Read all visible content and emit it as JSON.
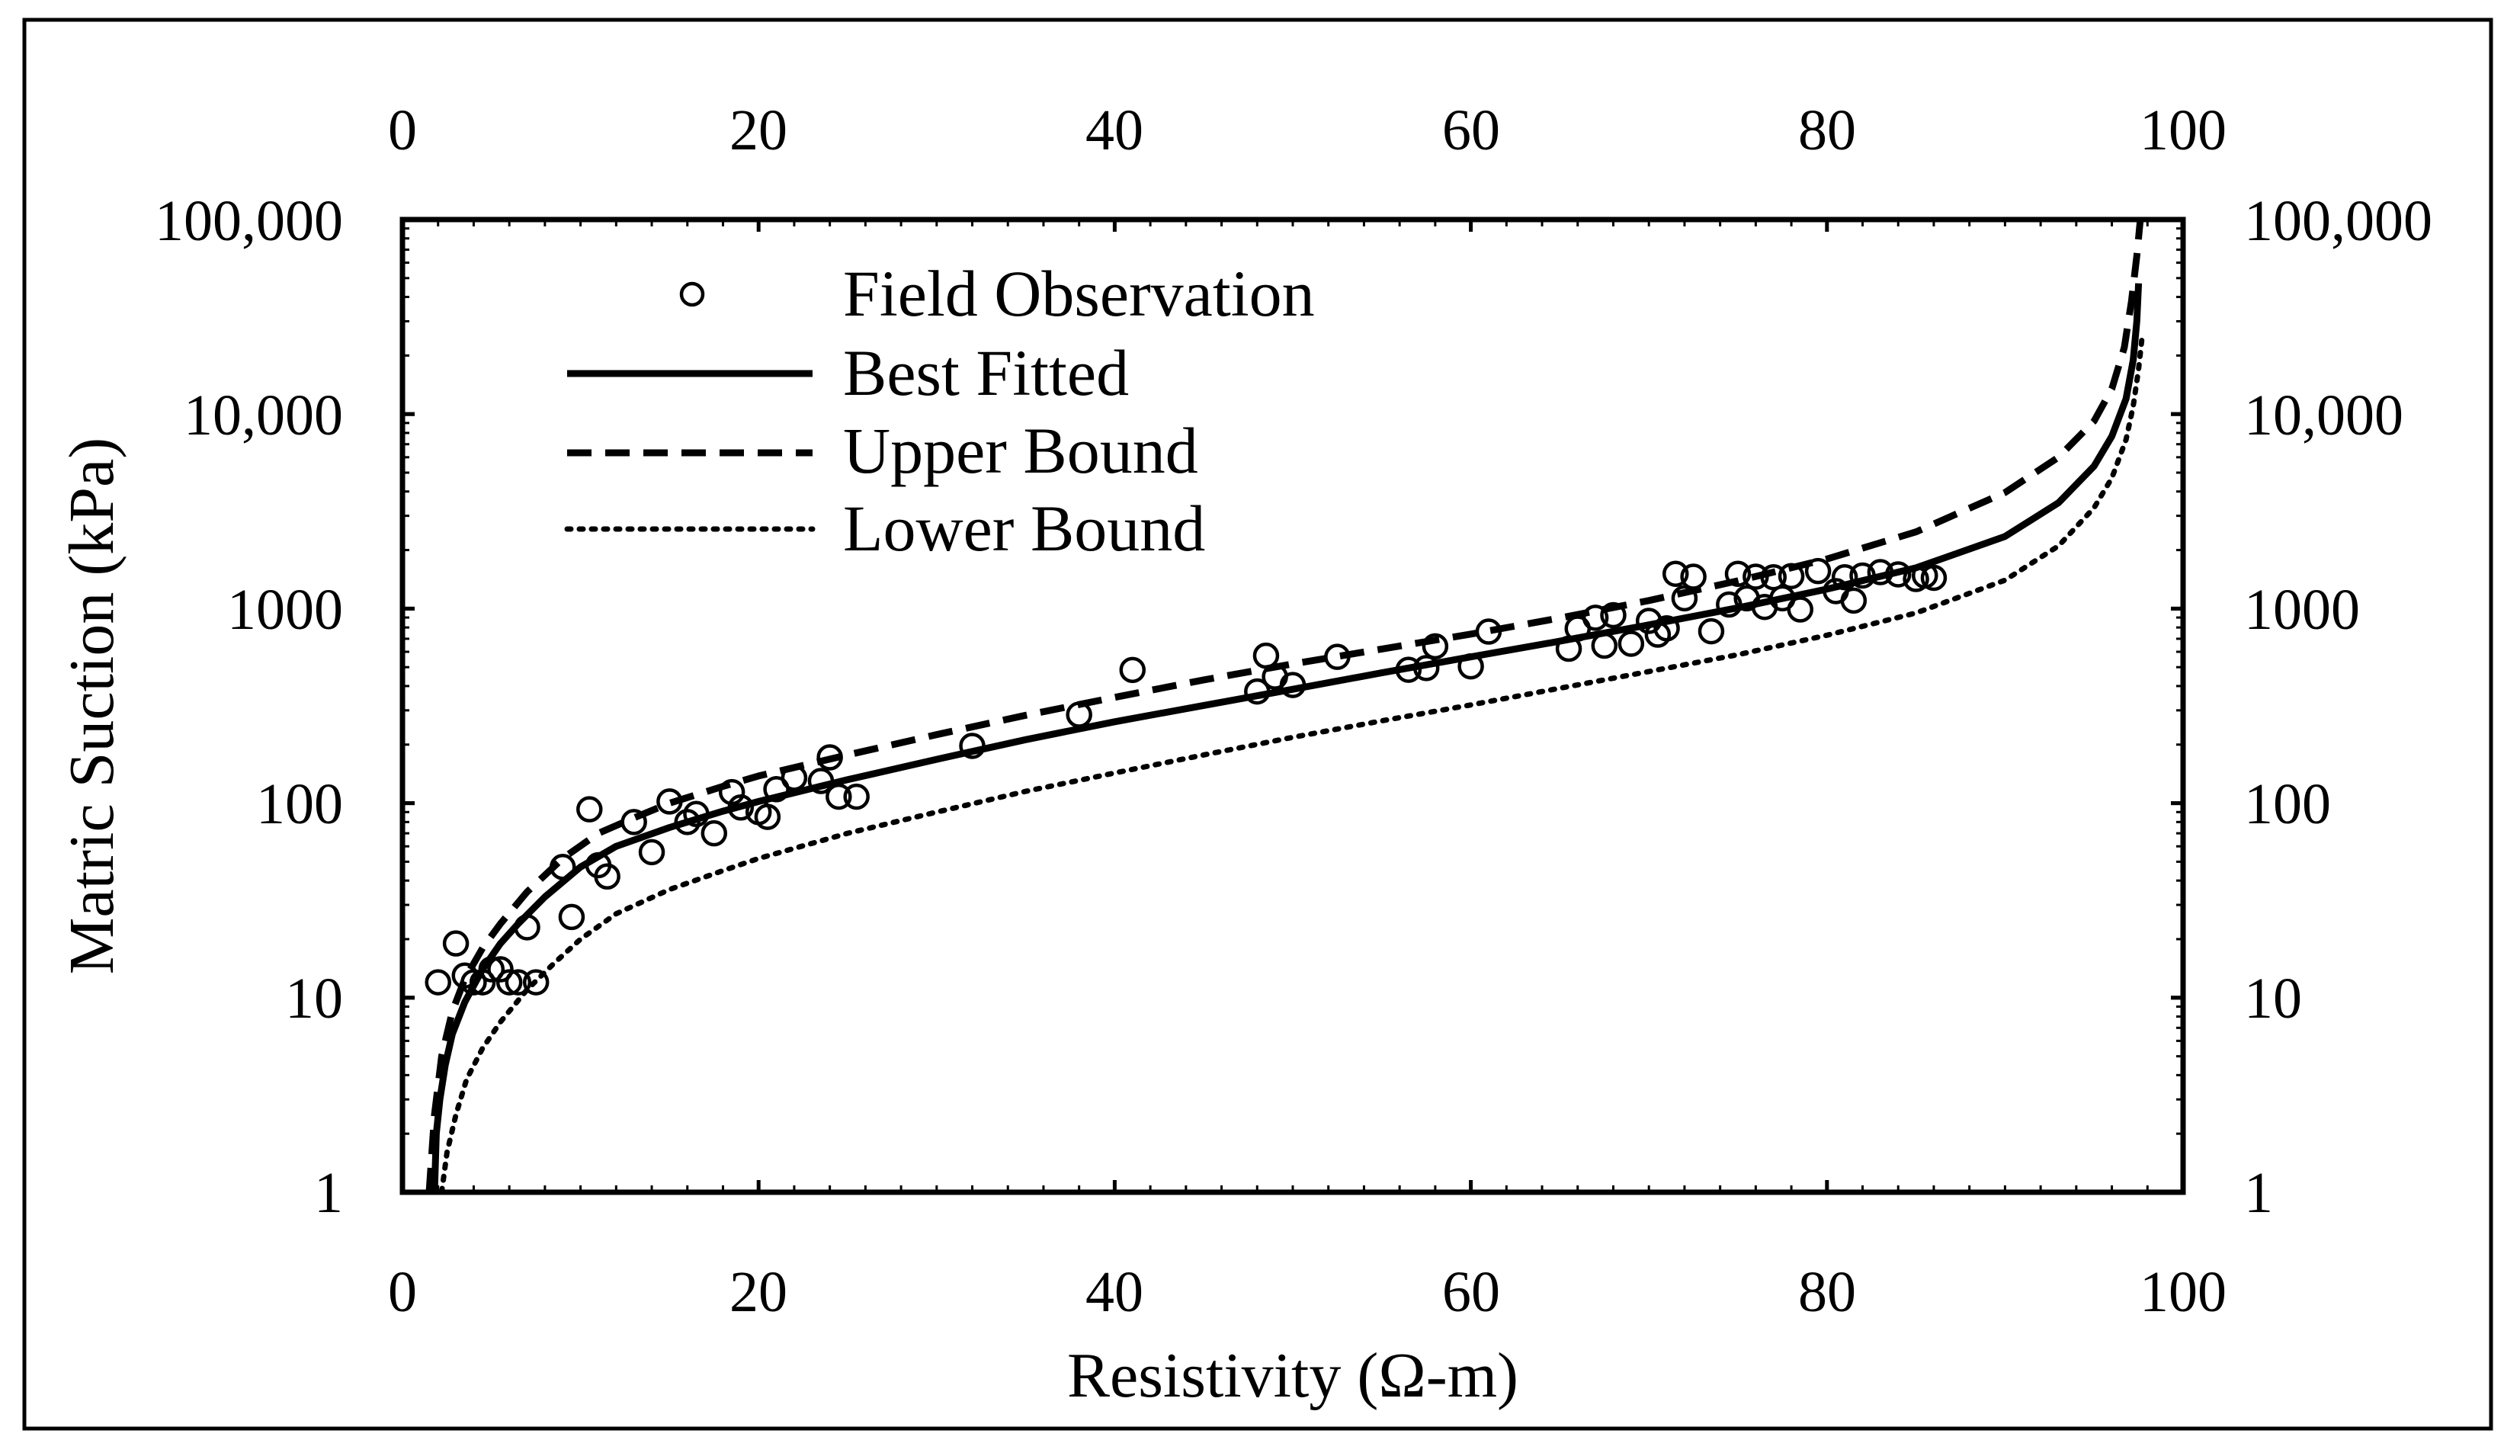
{
  "chart_data": {
    "type": "scatter",
    "title": "",
    "xlabel": "Resistivity (Ω-m)",
    "ylabel": "Matric Suction (kPa)",
    "xlim": [
      0,
      100
    ],
    "ylim": [
      1,
      100000
    ],
    "yscale": "log",
    "x_ticks": [
      0,
      20,
      40,
      60,
      80,
      100
    ],
    "x_tick_labels": [
      "0",
      "20",
      "40",
      "60",
      "80",
      "100"
    ],
    "y_ticks": [
      1,
      10,
      100,
      1000,
      10000,
      100000
    ],
    "y_tick_labels": [
      "1",
      "10",
      "100",
      "1000",
      "10,000",
      "100,000"
    ],
    "grid": false,
    "legend_position": "top-left",
    "series": [
      {
        "name": "Field Observation",
        "style": "open-circle",
        "points": [
          [
            2,
            12
          ],
          [
            3,
            19
          ],
          [
            3.5,
            13
          ],
          [
            4,
            12
          ],
          [
            4.5,
            12
          ],
          [
            5,
            14
          ],
          [
            5.5,
            14
          ],
          [
            6,
            12
          ],
          [
            6.5,
            12
          ],
          [
            7,
            23
          ],
          [
            7.5,
            12
          ],
          [
            9,
            47
          ],
          [
            9.5,
            26
          ],
          [
            10.5,
            93
          ],
          [
            11,
            48
          ],
          [
            11.5,
            42
          ],
          [
            13,
            80
          ],
          [
            14,
            56
          ],
          [
            15,
            102
          ],
          [
            16,
            80
          ],
          [
            16.5,
            88
          ],
          [
            17.5,
            70
          ],
          [
            18.5,
            114
          ],
          [
            19,
            95
          ],
          [
            20,
            90
          ],
          [
            20.5,
            85
          ],
          [
            21,
            118
          ],
          [
            22,
            135
          ],
          [
            23.5,
            130
          ],
          [
            24,
            172
          ],
          [
            24.5,
            108
          ],
          [
            25.5,
            108
          ],
          [
            32,
            197
          ],
          [
            38,
            285
          ],
          [
            41,
            484
          ],
          [
            48,
            375
          ],
          [
            48.5,
            573
          ],
          [
            49,
            447
          ],
          [
            50,
            405
          ],
          [
            52.5,
            565
          ],
          [
            56.5,
            485
          ],
          [
            57.5,
            495
          ],
          [
            58,
            640
          ],
          [
            60,
            505
          ],
          [
            61,
            762
          ],
          [
            65.5,
            622
          ],
          [
            66,
            790
          ],
          [
            67,
            898
          ],
          [
            67.5,
            645
          ],
          [
            68,
            925
          ],
          [
            69,
            660
          ],
          [
            70,
            865
          ],
          [
            70.5,
            735
          ],
          [
            71,
            792
          ],
          [
            71.5,
            1510
          ],
          [
            72,
            1130
          ],
          [
            72.5,
            1460
          ],
          [
            73.5,
            765
          ],
          [
            74.5,
            1050
          ],
          [
            75,
            1510
          ],
          [
            75.5,
            1130
          ],
          [
            76,
            1460
          ],
          [
            76.5,
            1020
          ],
          [
            77,
            1450
          ],
          [
            77.5,
            1130
          ],
          [
            78,
            1470
          ],
          [
            78.5,
            990
          ],
          [
            79.5,
            1560
          ],
          [
            80.5,
            1230
          ],
          [
            81,
            1450
          ],
          [
            81.5,
            1100
          ],
          [
            82,
            1480
          ],
          [
            83,
            1540
          ],
          [
            84,
            1500
          ],
          [
            85,
            1420
          ],
          [
            85.5,
            1480
          ],
          [
            86,
            1440
          ]
        ]
      },
      {
        "name": "Best Fitted",
        "style": "solid",
        "points": [
          [
            1.8,
            1
          ],
          [
            1.9,
            2
          ],
          [
            2.1,
            3
          ],
          [
            2.4,
            4.5
          ],
          [
            2.8,
            6.5
          ],
          [
            3.5,
            9.5
          ],
          [
            4.5,
            14
          ],
          [
            5.5,
            19
          ],
          [
            6.5,
            24
          ],
          [
            8,
            33
          ],
          [
            10,
            47
          ],
          [
            12,
            60
          ],
          [
            15,
            75
          ],
          [
            18,
            91
          ],
          [
            20,
            102
          ],
          [
            25,
            132
          ],
          [
            30,
            168
          ],
          [
            35,
            212
          ],
          [
            40,
            262
          ],
          [
            45,
            318
          ],
          [
            50,
            385
          ],
          [
            55,
            468
          ],
          [
            60,
            565
          ],
          [
            65,
            680
          ],
          [
            70,
            825
          ],
          [
            75,
            1010
          ],
          [
            80,
            1260
          ],
          [
            85,
            1620
          ],
          [
            90,
            2350
          ],
          [
            93,
            3500
          ],
          [
            95,
            5400
          ],
          [
            96,
            7700
          ],
          [
            96.8,
            12000
          ],
          [
            97.2,
            19000
          ],
          [
            97.4,
            30000
          ],
          [
            97.5,
            47000
          ]
        ]
      },
      {
        "name": "Upper Bound",
        "style": "dashed",
        "points": [
          [
            1.5,
            1
          ],
          [
            1.8,
            2.5
          ],
          [
            2.2,
            5
          ],
          [
            2.8,
            8.5
          ],
          [
            3.5,
            12.5
          ],
          [
            4.5,
            18
          ],
          [
            5.5,
            24
          ],
          [
            7,
            35
          ],
          [
            9,
            52
          ],
          [
            11,
            70
          ],
          [
            13,
            84
          ],
          [
            15,
            100
          ],
          [
            18,
            122
          ],
          [
            20,
            138
          ],
          [
            25,
            177
          ],
          [
            30,
            225
          ],
          [
            35,
            283
          ],
          [
            40,
            350
          ],
          [
            45,
            430
          ],
          [
            50,
            520
          ],
          [
            55,
            620
          ],
          [
            60,
            740
          ],
          [
            65,
            895
          ],
          [
            70,
            1100
          ],
          [
            75,
            1390
          ],
          [
            80,
            1800
          ],
          [
            85,
            2480
          ],
          [
            90,
            3950
          ],
          [
            93,
            6000
          ],
          [
            95,
            9200
          ],
          [
            96,
            13500
          ],
          [
            96.7,
            22000
          ],
          [
            97.1,
            38000
          ],
          [
            97.4,
            65000
          ],
          [
            97.6,
            100000
          ]
        ]
      },
      {
        "name": "Lower Bound",
        "style": "dotted",
        "points": [
          [
            2.2,
            1
          ],
          [
            2.5,
            1.6
          ],
          [
            3,
            2.5
          ],
          [
            3.6,
            3.8
          ],
          [
            4.5,
            5.5
          ],
          [
            5.5,
            7.5
          ],
          [
            7,
            11
          ],
          [
            8.5,
            15
          ],
          [
            10,
            20
          ],
          [
            12,
            27
          ],
          [
            15,
            36
          ],
          [
            18,
            45
          ],
          [
            20,
            52
          ],
          [
            25,
            70
          ],
          [
            30,
            90
          ],
          [
            35,
            115
          ],
          [
            40,
            143
          ],
          [
            45,
            177
          ],
          [
            50,
            218
          ],
          [
            55,
            265
          ],
          [
            60,
            320
          ],
          [
            65,
            390
          ],
          [
            70,
            475
          ],
          [
            75,
            580
          ],
          [
            80,
            730
          ],
          [
            85,
            950
          ],
          [
            90,
            1400
          ],
          [
            93,
            2100
          ],
          [
            95,
            3300
          ],
          [
            96,
            4700
          ],
          [
            96.8,
            7400
          ],
          [
            97.2,
            11000
          ],
          [
            97.5,
            17000
          ],
          [
            97.7,
            25000
          ]
        ]
      }
    ]
  }
}
